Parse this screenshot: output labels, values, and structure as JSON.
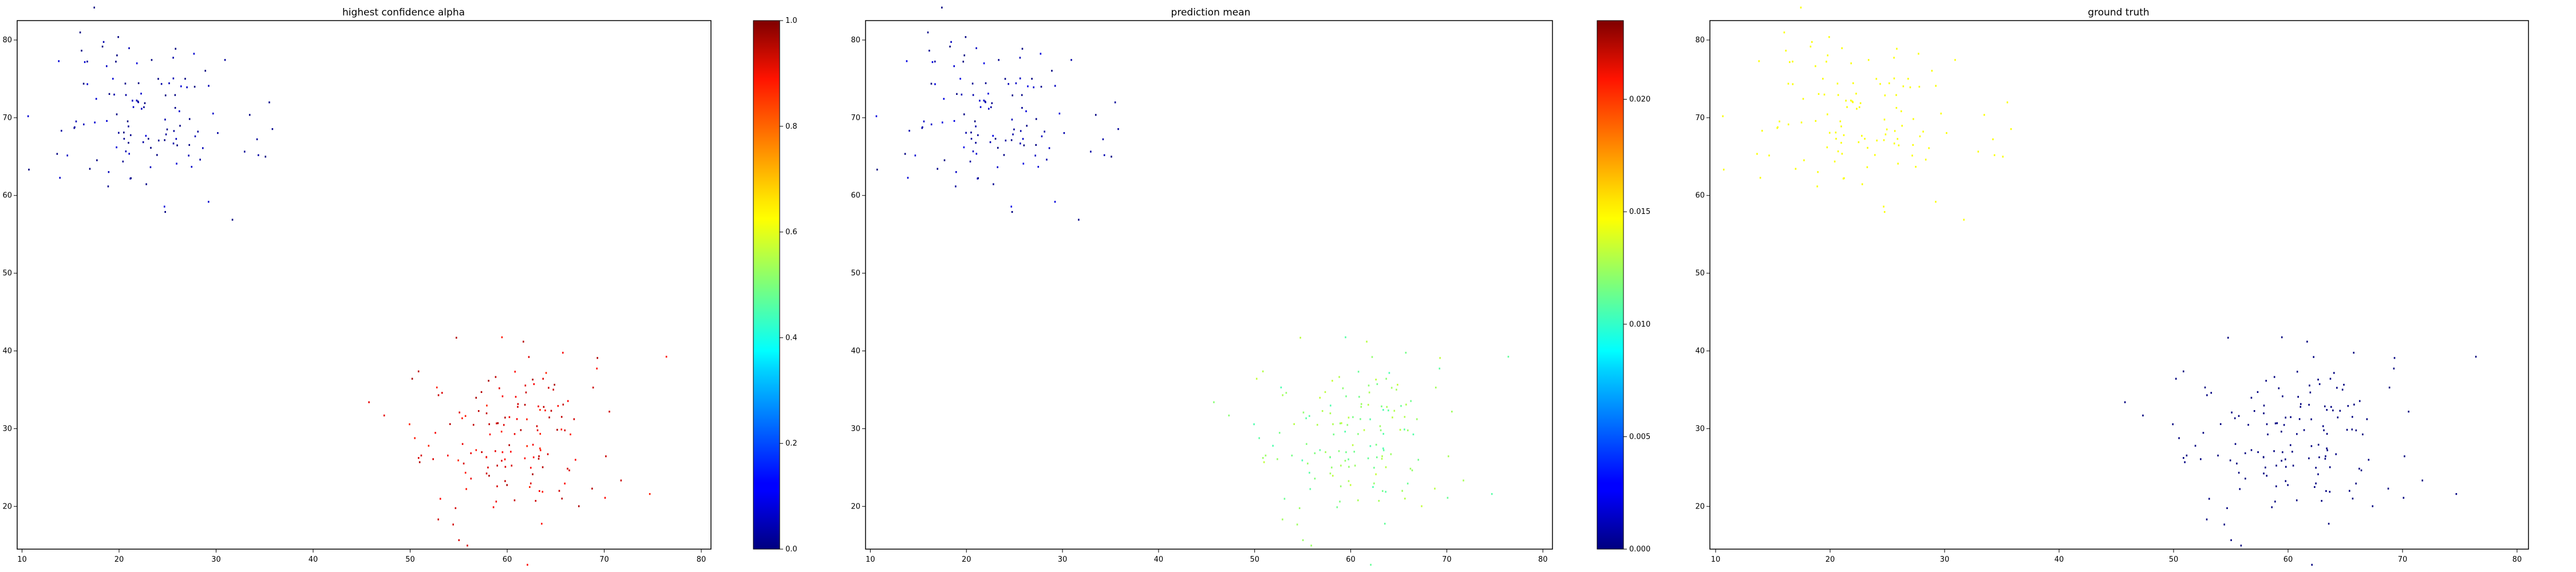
{
  "figure": {
    "panels": [
      {
        "title": "highest confidence alpha",
        "colorbar": {
          "ticks": [
            "0.0",
            "0.2",
            "0.4",
            "0.6",
            "0.8",
            "1.0"
          ],
          "range": [
            0,
            1
          ]
        }
      },
      {
        "title": "prediction mean",
        "colorbar": {
          "ticks": [
            "0.000",
            "0.005",
            "0.010",
            "0.015",
            "0.020"
          ],
          "range": [
            0,
            0.0235
          ]
        }
      },
      {
        "title": "ground truth"
      }
    ]
  },
  "chart_data": [
    {
      "type": "scatter",
      "title": "highest confidence alpha",
      "xlabel": "",
      "ylabel": "",
      "xlim": [
        9.5,
        81
      ],
      "ylim": [
        14.5,
        82.5
      ],
      "xticks": [
        10,
        20,
        30,
        40,
        50,
        60,
        70,
        80
      ],
      "yticks": [
        20,
        30,
        40,
        50,
        60,
        70,
        80
      ],
      "colormap": "jet",
      "colorbar_range": [
        0,
        1
      ],
      "clusters": [
        {
          "center": [
            23,
            69
          ],
          "spread": [
            4.5,
            5.2
          ],
          "count": 120,
          "color_value": 0.03
        },
        {
          "center": [
            60,
            29
          ],
          "spread": [
            5.5,
            5.5
          ],
          "count": 150,
          "color_value": 0.9
        }
      ]
    },
    {
      "type": "scatter",
      "title": "prediction mean",
      "xlabel": "",
      "ylabel": "",
      "xlim": [
        9.5,
        81
      ],
      "ylim": [
        14.5,
        82.5
      ],
      "xticks": [
        10,
        20,
        30,
        40,
        50,
        60,
        70,
        80
      ],
      "yticks": [
        20,
        30,
        40,
        50,
        60,
        70,
        80
      ],
      "colormap": "jet",
      "colorbar_range": [
        0,
        0.0235
      ],
      "clusters": [
        {
          "center": [
            23,
            69
          ],
          "spread": [
            4.5,
            5.2
          ],
          "count": 120,
          "color_value": 0.001
        },
        {
          "center": [
            60,
            29
          ],
          "spread": [
            5.5,
            5.5
          ],
          "count": 150,
          "color_value": 0.012
        }
      ]
    },
    {
      "type": "scatter",
      "title": "ground truth",
      "xlabel": "",
      "ylabel": "",
      "xlim": [
        9.5,
        81
      ],
      "ylim": [
        14.5,
        82.5
      ],
      "xticks": [
        10,
        20,
        30,
        40,
        50,
        60,
        70,
        80
      ],
      "yticks": [
        20,
        30,
        40,
        50,
        60,
        70,
        80
      ],
      "colormap": "jet",
      "clusters": [
        {
          "center": [
            23,
            69
          ],
          "spread": [
            4.5,
            5.2
          ],
          "count": 120,
          "color_value": 0.62
        },
        {
          "center": [
            60,
            29
          ],
          "spread": [
            5.5,
            5.5
          ],
          "count": 150,
          "color_value": 0.0
        }
      ]
    }
  ]
}
